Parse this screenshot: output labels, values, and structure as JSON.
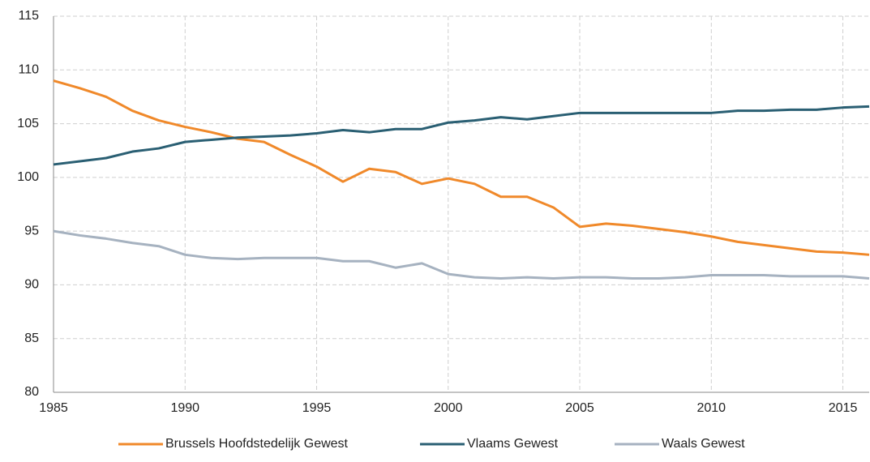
{
  "chart_data": {
    "type": "line",
    "x": [
      1985,
      1986,
      1987,
      1988,
      1989,
      1990,
      1991,
      1992,
      1993,
      1994,
      1995,
      1996,
      1997,
      1998,
      1999,
      2000,
      2001,
      2002,
      2003,
      2004,
      2005,
      2006,
      2007,
      2008,
      2009,
      2010,
      2011,
      2012,
      2013,
      2014,
      2015,
      2016
    ],
    "series": [
      {
        "name": "Brussels Hoofdstedelijk Gewest",
        "color": "#f0892a",
        "values": [
          109,
          108.3,
          107.5,
          106.2,
          105.3,
          104.7,
          104.2,
          103.6,
          103.3,
          102.1,
          101,
          99.6,
          100.8,
          100.5,
          99.4,
          99.9,
          99.4,
          98.2,
          98.2,
          97.2,
          95.4,
          95.7,
          95.5,
          95.2,
          94.9,
          94.5,
          94,
          93.7,
          93.4,
          93.1,
          93,
          92.8
        ]
      },
      {
        "name": "Vlaams Gewest",
        "color": "#2a5f73",
        "values": [
          101.2,
          101.5,
          101.8,
          102.4,
          102.7,
          103.3,
          103.5,
          103.7,
          103.8,
          103.9,
          104.1,
          104.4,
          104.2,
          104.5,
          104.5,
          105.1,
          105.3,
          105.6,
          105.4,
          105.7,
          106,
          106,
          106,
          106,
          106,
          106,
          106.2,
          106.2,
          106.3,
          106.3,
          106.5,
          106.6
        ]
      },
      {
        "name": "Waals Gewest",
        "color": "#a6b2c0",
        "values": [
          95,
          94.6,
          94.3,
          93.9,
          93.6,
          92.8,
          92.5,
          92.4,
          92.5,
          92.5,
          92.5,
          92.2,
          92.2,
          91.6,
          92,
          91,
          90.7,
          90.6,
          90.7,
          90.6,
          90.7,
          90.7,
          90.6,
          90.6,
          90.7,
          90.9,
          90.9,
          90.9,
          90.8,
          90.8,
          90.8,
          90.6
        ]
      }
    ],
    "xlim": [
      1985,
      2016
    ],
    "xticks": [
      1985,
      1990,
      1995,
      2000,
      2005,
      2010,
      2015
    ],
    "ylim": [
      80,
      115
    ],
    "yticks": [
      80,
      85,
      90,
      95,
      100,
      105,
      110,
      115
    ],
    "grid": true,
    "legend": "bottom"
  }
}
